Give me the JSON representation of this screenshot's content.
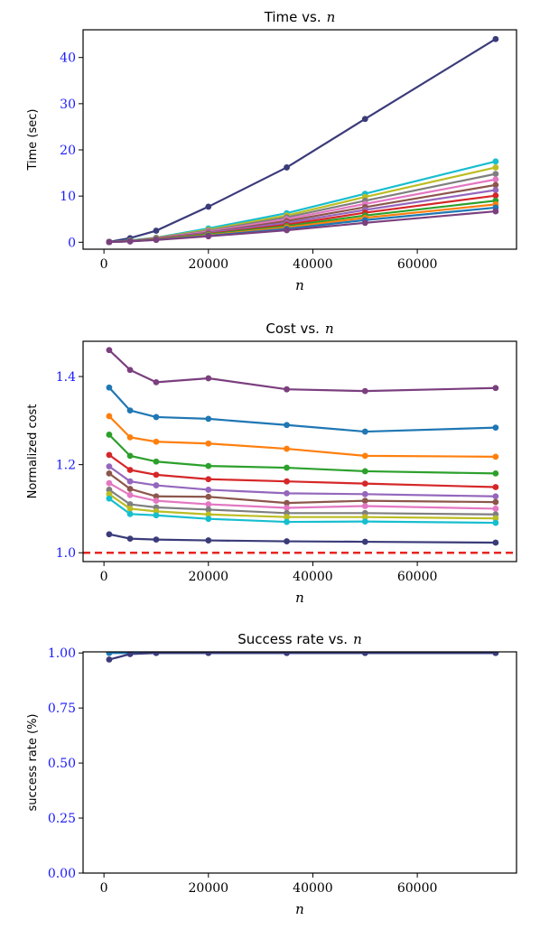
{
  "chart_data": [
    {
      "type": "line",
      "title": "Time vs.",
      "title_var": "n",
      "xlabel": "n",
      "ylabel": "Time (sec)",
      "xlim": [
        -4000,
        79000
      ],
      "ylim": [
        -1.5,
        46
      ],
      "xticks": [
        0,
        20000,
        40000,
        60000
      ],
      "xtick_labels": [
        "0",
        "20000",
        "40000",
        "60000"
      ],
      "yticks": [
        0,
        10,
        20,
        30,
        40
      ],
      "ytick_labels": [
        "0",
        "10",
        "20",
        "30",
        "40"
      ],
      "tick_label_color": "#1a1aff",
      "grid": false,
      "x": [
        1000,
        5000,
        10000,
        20000,
        35000,
        50000,
        75000
      ],
      "series": [
        {
          "color": "#3b3b7a",
          "values": [
            0.1,
            0.9,
            2.5,
            7.7,
            16.2,
            26.7,
            44.0
          ]
        },
        {
          "color": "#17becf",
          "values": [
            0.05,
            0.4,
            1.0,
            3.0,
            6.3,
            10.5,
            17.5
          ]
        },
        {
          "color": "#bcbd22",
          "values": [
            0.05,
            0.35,
            0.95,
            2.7,
            5.8,
            9.8,
            16.2
          ]
        },
        {
          "color": "#7f7f7f",
          "values": [
            0.05,
            0.35,
            0.9,
            2.5,
            5.4,
            9.0,
            14.8
          ]
        },
        {
          "color": "#e377c2",
          "values": [
            0.05,
            0.3,
            0.85,
            2.3,
            5.0,
            8.3,
            13.6
          ]
        },
        {
          "color": "#8c564b",
          "values": [
            0.05,
            0.3,
            0.8,
            2.1,
            4.6,
            7.6,
            12.4
          ]
        },
        {
          "color": "#9467bd",
          "values": [
            0.05,
            0.3,
            0.75,
            2.0,
            4.2,
            7.0,
            11.3
          ]
        },
        {
          "color": "#d62728",
          "values": [
            0.05,
            0.25,
            0.7,
            1.8,
            3.8,
            6.4,
            10.1
          ]
        },
        {
          "color": "#2ca02c",
          "values": [
            0.05,
            0.25,
            0.65,
            1.7,
            3.5,
            5.8,
            9.0
          ]
        },
        {
          "color": "#ff7f0e",
          "values": [
            0.05,
            0.2,
            0.6,
            1.5,
            3.2,
            5.3,
            8.2
          ]
        },
        {
          "color": "#1f77b4",
          "values": [
            0.05,
            0.2,
            0.55,
            1.4,
            2.9,
            4.8,
            7.5
          ]
        },
        {
          "color": "#7b3f7e",
          "values": [
            0.05,
            0.2,
            0.5,
            1.3,
            2.6,
            4.2,
            6.7
          ]
        }
      ]
    },
    {
      "type": "line",
      "title": "Cost vs.",
      "title_var": "n",
      "xlabel": "n",
      "ylabel": "Normalized cost",
      "xlim": [
        -4000,
        79000
      ],
      "ylim": [
        0.98,
        1.48
      ],
      "xticks": [
        0,
        20000,
        40000,
        60000
      ],
      "xtick_labels": [
        "0",
        "20000",
        "40000",
        "60000"
      ],
      "yticks": [
        1.0,
        1.2,
        1.4
      ],
      "ytick_labels": [
        "1.0",
        "1.2",
        "1.4"
      ],
      "tick_label_color": "#1a1aff",
      "grid": false,
      "reference_line": {
        "y": 1.0,
        "color": "#e8251f",
        "style": "dashed"
      },
      "x": [
        1000,
        5000,
        10000,
        20000,
        35000,
        50000,
        75000
      ],
      "series": [
        {
          "color": "#7b3f7e",
          "values": [
            1.46,
            1.415,
            1.387,
            1.396,
            1.371,
            1.367,
            1.374
          ]
        },
        {
          "color": "#1f77b4",
          "values": [
            1.375,
            1.323,
            1.308,
            1.304,
            1.29,
            1.275,
            1.284
          ]
        },
        {
          "color": "#ff7f0e",
          "values": [
            1.31,
            1.262,
            1.252,
            1.248,
            1.236,
            1.22,
            1.218
          ]
        },
        {
          "color": "#2ca02c",
          "values": [
            1.268,
            1.22,
            1.207,
            1.197,
            1.193,
            1.185,
            1.18
          ]
        },
        {
          "color": "#d62728",
          "values": [
            1.222,
            1.188,
            1.177,
            1.167,
            1.162,
            1.157,
            1.149
          ]
        },
        {
          "color": "#9467bd",
          "values": [
            1.196,
            1.162,
            1.153,
            1.143,
            1.135,
            1.133,
            1.128
          ]
        },
        {
          "color": "#8c564b",
          "values": [
            1.18,
            1.145,
            1.128,
            1.127,
            1.113,
            1.118,
            1.115
          ]
        },
        {
          "color": "#e377c2",
          "values": [
            1.158,
            1.131,
            1.118,
            1.11,
            1.102,
            1.106,
            1.1
          ]
        },
        {
          "color": "#7f7f7f",
          "values": [
            1.143,
            1.11,
            1.103,
            1.098,
            1.09,
            1.09,
            1.087
          ]
        },
        {
          "color": "#bcbd22",
          "values": [
            1.133,
            1.1,
            1.094,
            1.087,
            1.081,
            1.081,
            1.078
          ]
        },
        {
          "color": "#17becf",
          "values": [
            1.123,
            1.088,
            1.085,
            1.077,
            1.07,
            1.071,
            1.068
          ]
        },
        {
          "color": "#3b3b7a",
          "values": [
            1.042,
            1.032,
            1.03,
            1.028,
            1.026,
            1.025,
            1.023
          ]
        }
      ]
    },
    {
      "type": "line",
      "title": "Success rate vs.",
      "title_var": "n",
      "xlabel": "n",
      "ylabel": "success rate (%)",
      "xlim": [
        -4000,
        79000
      ],
      "ylim": [
        0.0,
        1.005
      ],
      "xticks": [
        0,
        20000,
        40000,
        60000
      ],
      "xtick_labels": [
        "0",
        "20000",
        "40000",
        "60000"
      ],
      "yticks": [
        0.0,
        0.25,
        0.5,
        0.75,
        1.0
      ],
      "ytick_labels": [
        "0.00",
        "0.25",
        "0.50",
        "0.75",
        "1.00"
      ],
      "tick_label_color": "#1a1aff",
      "grid": false,
      "x": [
        1000,
        5000,
        10000,
        20000,
        35000,
        50000,
        75000
      ],
      "series": [
        {
          "color": "#1f77b4",
          "values": [
            1.0,
            1.0,
            1.0,
            1.0,
            1.0,
            1.0,
            1.0
          ]
        },
        {
          "color": "#3b3b7a",
          "values": [
            0.97,
            0.995,
            1.0,
            1.0,
            1.0,
            1.0,
            1.0
          ]
        }
      ]
    }
  ]
}
